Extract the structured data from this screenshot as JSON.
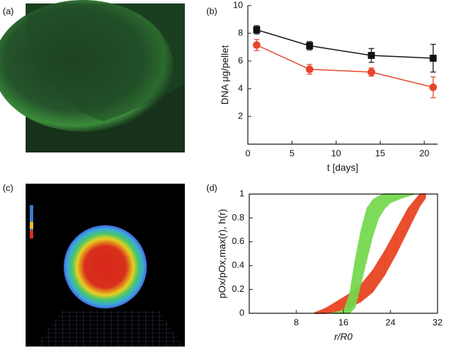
{
  "panel_labels": [
    "(a)",
    "(b)",
    "(c)",
    "(d)"
  ],
  "chart_data": [
    {
      "type": "line",
      "xlabel": "t [days]",
      "ylabel": "DNA μg/pellet",
      "x": [
        1,
        7,
        14,
        21
      ],
      "series": [
        {
          "color": "#111111",
          "marker": "square",
          "values": [
            8.25,
            7.1,
            6.4,
            6.2
          ],
          "errors": [
            0.3,
            0.3,
            0.5,
            1.0
          ]
        },
        {
          "color": "#e8452c",
          "marker": "circle",
          "values": [
            7.15,
            5.4,
            5.2,
            4.1
          ],
          "errors": [
            0.4,
            0.35,
            0.3,
            0.75
          ]
        }
      ],
      "xlim": [
        0,
        21.5
      ],
      "xticks": [
        0,
        5,
        10,
        15,
        20
      ],
      "ylim": [
        0,
        10
      ],
      "yticks": [
        2,
        4,
        6,
        8,
        10
      ]
    },
    {
      "type": "band",
      "xlabel": "r/R0",
      "ylabel": "pOx/pOx,max(r), h(r)",
      "series": [
        {
          "color": "#e8401c",
          "x": [
            11,
            13,
            15,
            17,
            19,
            21,
            23,
            25,
            27,
            29,
            30
          ],
          "low": [
            0,
            0,
            0.02,
            0.05,
            0.1,
            0.18,
            0.32,
            0.5,
            0.7,
            0.9,
            0.97
          ],
          "high": [
            0,
            0.04,
            0.1,
            0.16,
            0.24,
            0.36,
            0.52,
            0.7,
            0.88,
            1,
            1
          ]
        },
        {
          "color": "#74d84c",
          "x": [
            14,
            16,
            17,
            18,
            19,
            20,
            21,
            22,
            23,
            24,
            26,
            28
          ],
          "low": [
            0,
            0,
            0,
            0.05,
            0.25,
            0.45,
            0.65,
            0.8,
            0.88,
            0.93,
            0.97,
            1
          ],
          "high": [
            0,
            0.02,
            0.15,
            0.45,
            0.7,
            0.88,
            0.95,
            0.98,
            1,
            1,
            1,
            1
          ]
        }
      ],
      "xlim": [
        0,
        32
      ],
      "xticks": [
        8,
        16,
        24,
        32
      ],
      "ylim": [
        0,
        1
      ],
      "yticks": [
        0,
        0.2,
        0.4,
        0.6,
        0.8,
        1
      ]
    }
  ]
}
